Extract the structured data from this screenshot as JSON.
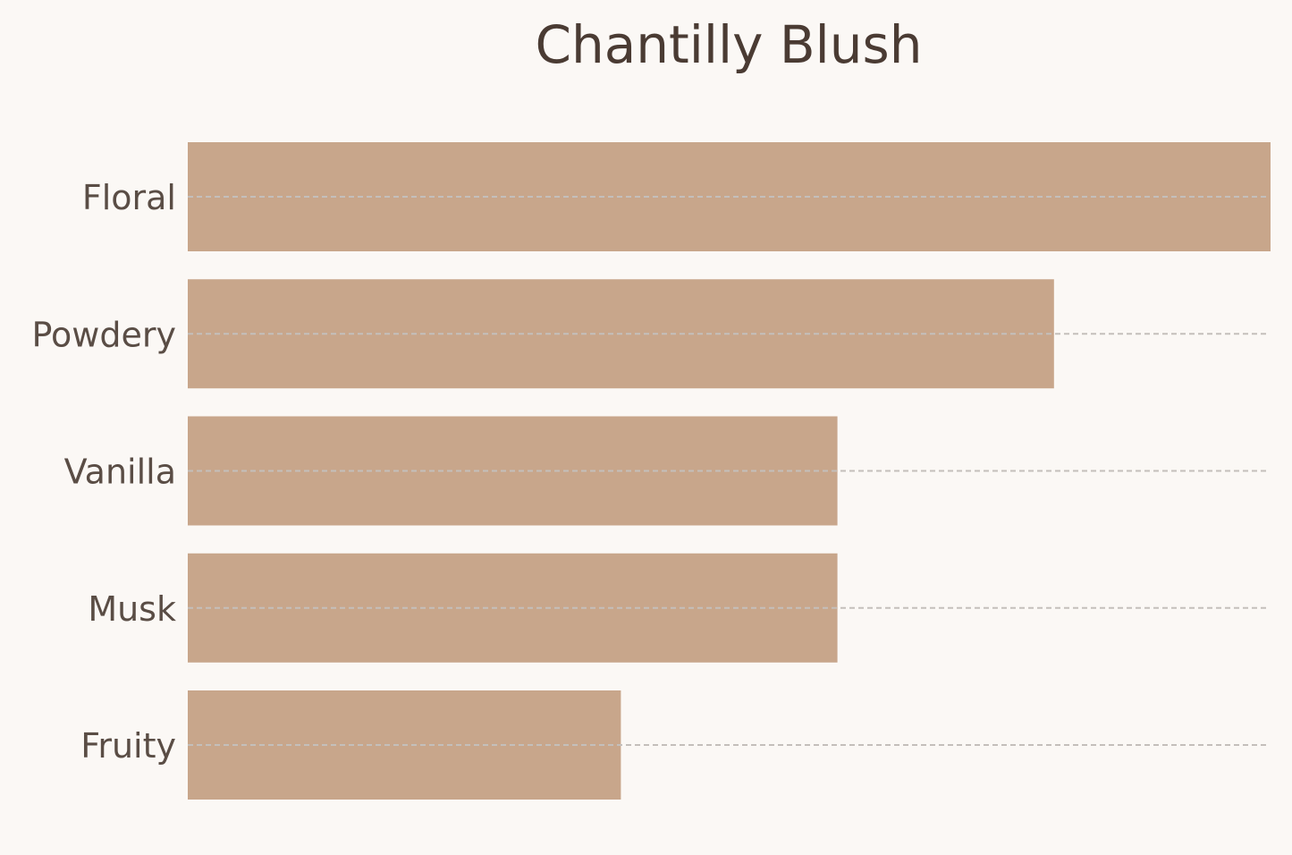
{
  "chart_data": {
    "type": "bar",
    "orientation": "horizontal",
    "title": "Chantilly Blush",
    "xlabel": "",
    "ylabel": "",
    "categories": [
      "Floral",
      "Powdery",
      "Vanilla",
      "Musk",
      "Fruity"
    ],
    "values": [
      5,
      4,
      3,
      3,
      2
    ],
    "xlim": [
      0,
      5
    ],
    "grid": true,
    "x_axis_visible": false,
    "colors": {
      "bar": "#c8a68b",
      "grid": "#c4bfbb",
      "background": "#fbf8f5",
      "title": "#4a3b33",
      "label": "#5a4d45"
    }
  }
}
